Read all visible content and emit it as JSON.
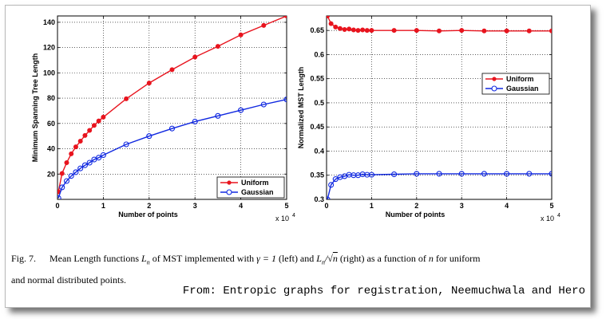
{
  "caption": {
    "fig_label": "Fig. 7.",
    "part1": "Mean Length functions",
    "part2": "of MST implemented with",
    "part3": "(left) and",
    "part4": "(right) as a function of",
    "part5": "for uniform",
    "line2": "and normal distributed points.",
    "math": {
      "Ln": "L",
      "Ln_sub": "n",
      "gamma_eq": "γ = 1",
      "ratio_num": "L",
      "ratio_sub": "n",
      "ratio_den": "n",
      "n": "n"
    }
  },
  "source": "From: Entropic graphs for registration, Neemuchwala and Hero",
  "colors": {
    "uniform": "#e8141e",
    "gaussian": "#1028e0",
    "frame_shadow": "#888888"
  },
  "chart_data": [
    {
      "type": "line",
      "xlabel": "Number of points",
      "ylabel": "Minimum Spanning Tree Length",
      "x_multiplier": "x 10",
      "x_multiplier_exp": "4",
      "xlim": [
        0,
        5
      ],
      "ylim": [
        0,
        145
      ],
      "xticks": [
        "0",
        "1",
        "2",
        "3",
        "4",
        "5"
      ],
      "yticks": [
        "20",
        "40",
        "60",
        "80",
        "100",
        "120",
        "140"
      ],
      "grid": true,
      "legend_position": "lower-right",
      "series": [
        {
          "name": "Uniform",
          "marker": "filled-circle",
          "x": [
            0.02,
            0.1,
            0.2,
            0.3,
            0.4,
            0.5,
            0.6,
            0.7,
            0.8,
            0.9,
            1.0,
            1.5,
            2.0,
            2.5,
            3.0,
            3.5,
            4.0,
            4.5,
            5.0
          ],
          "y": [
            6,
            20.5,
            29,
            36,
            41.5,
            46,
            50.5,
            54.5,
            58.5,
            62,
            65,
            79.5,
            92,
            102.5,
            112.5,
            121,
            130,
            137.5,
            145
          ]
        },
        {
          "name": "Gaussian",
          "marker": "open-circle",
          "x": [
            0.02,
            0.1,
            0.2,
            0.3,
            0.4,
            0.5,
            0.6,
            0.7,
            0.8,
            0.9,
            1.0,
            1.5,
            2.0,
            2.5,
            3.0,
            3.5,
            4.0,
            4.5,
            5.0
          ],
          "y": [
            1,
            9.5,
            14.5,
            18.5,
            21.5,
            24.5,
            27,
            29,
            31.5,
            33,
            35,
            43.5,
            50,
            56,
            61.5,
            66,
            70.5,
            75,
            79
          ]
        }
      ]
    },
    {
      "type": "line",
      "xlabel": "Number of points",
      "ylabel": "Normalized MST Length",
      "x_multiplier": "x 10",
      "x_multiplier_exp": "4",
      "xlim": [
        0,
        5
      ],
      "ylim": [
        0.3,
        0.68
      ],
      "xticks": [
        "0",
        "1",
        "2",
        "3",
        "4",
        "5"
      ],
      "yticks": [
        "0.3",
        "0.35",
        "0.4",
        "0.45",
        "0.5",
        "0.55",
        "0.6",
        "0.65"
      ],
      "grid": true,
      "legend_position": "center-right",
      "series": [
        {
          "name": "Uniform",
          "marker": "filled-circle",
          "x": [
            0.02,
            0.1,
            0.2,
            0.3,
            0.4,
            0.5,
            0.6,
            0.7,
            0.8,
            0.9,
            1.0,
            1.5,
            2.0,
            2.5,
            3.0,
            3.5,
            4.0,
            4.5,
            5.0
          ],
          "y": [
            0.68,
            0.664,
            0.657,
            0.654,
            0.652,
            0.653,
            0.651,
            0.65,
            0.651,
            0.65,
            0.65,
            0.65,
            0.65,
            0.649,
            0.65,
            0.649,
            0.649,
            0.649,
            0.649
          ]
        },
        {
          "name": "Gaussian",
          "marker": "open-circle",
          "x": [
            0.02,
            0.1,
            0.2,
            0.3,
            0.4,
            0.5,
            0.6,
            0.7,
            0.8,
            0.9,
            1.0,
            1.5,
            2.0,
            2.5,
            3.0,
            3.5,
            4.0,
            4.5,
            5.0
          ],
          "y": [
            0.3,
            0.33,
            0.342,
            0.346,
            0.348,
            0.351,
            0.35,
            0.35,
            0.352,
            0.351,
            0.351,
            0.352,
            0.353,
            0.353,
            0.353,
            0.353,
            0.353,
            0.353,
            0.353
          ]
        }
      ]
    }
  ]
}
